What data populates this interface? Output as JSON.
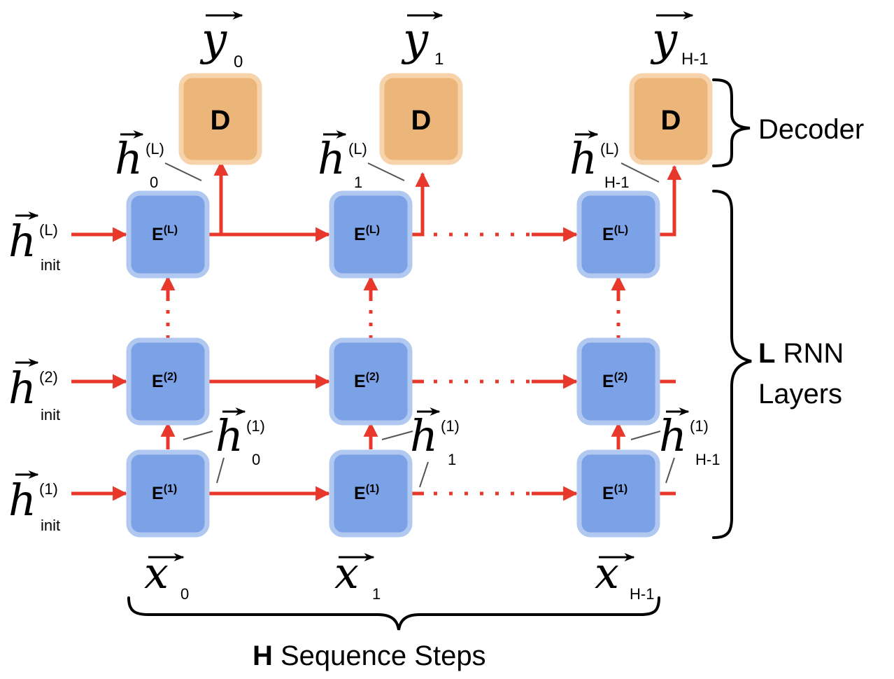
{
  "colors": {
    "encoder_fill": "#7ba1e6",
    "encoder_border": "#b1c8f0",
    "decoder_fill": "#ecb579",
    "decoder_border": "#f6d3ab",
    "arrow": "#e8372b",
    "leader": "#555555"
  },
  "decoder": {
    "box_label": "D",
    "outputs": [
      {
        "base": "y",
        "sub": "0"
      },
      {
        "base": "y",
        "sub": "1"
      },
      {
        "base": "y",
        "sub": "H-1"
      }
    ],
    "brace_label": "Decoder"
  },
  "encoder": {
    "layers": [
      {
        "base": "E",
        "sup": "(L)"
      },
      {
        "base": "E",
        "sup": "(2)"
      },
      {
        "base": "E",
        "sup": "(1)"
      }
    ]
  },
  "init_states": [
    {
      "base": "h",
      "sup": "(L)",
      "sub": "init"
    },
    {
      "base": "h",
      "sup": "(2)",
      "sub": "init"
    },
    {
      "base": "h",
      "sup": "(1)",
      "sub": "init"
    }
  ],
  "top_hidden": [
    {
      "base": "h",
      "sup": "(L)",
      "sub": "0"
    },
    {
      "base": "h",
      "sup": "(L)",
      "sub": "1"
    },
    {
      "base": "h",
      "sup": "(L)",
      "sub": "H-1"
    }
  ],
  "bottom_hidden": [
    {
      "base": "h",
      "sup": "(1)",
      "sub": "0"
    },
    {
      "base": "h",
      "sup": "(1)",
      "sub": "1"
    },
    {
      "base": "h",
      "sup": "(1)",
      "sub": "H-1"
    }
  ],
  "inputs": [
    {
      "base": "x",
      "sub": "0"
    },
    {
      "base": "x",
      "sub": "1"
    },
    {
      "base": "x",
      "sub": "H-1"
    }
  ],
  "layers_brace": {
    "bold": "L",
    "line1_rest": " RNN",
    "line2": "Layers"
  },
  "steps_brace": {
    "bold": "H",
    "rest": " Sequence Steps"
  }
}
